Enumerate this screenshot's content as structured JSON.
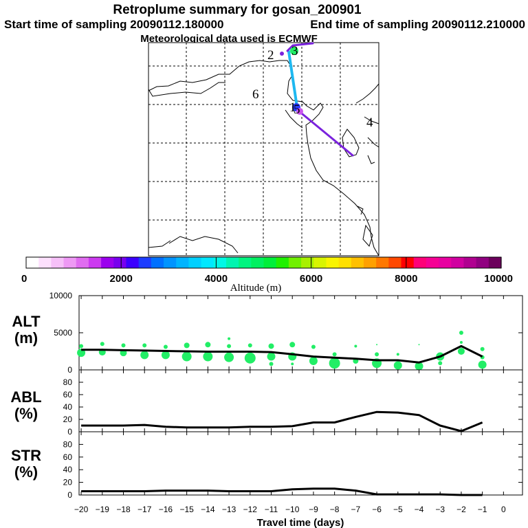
{
  "header": {
    "title": "Retroplume summary for gosan_200901",
    "start": "Start time of sampling 20090112.180000",
    "end": "End time of sampling 20090112.210000",
    "met": "Meteorological data used is ECMWF"
  },
  "map": {
    "cluster_labels": [
      {
        "text": "2",
        "color": "#000000"
      },
      {
        "text": "6",
        "color": "#000000"
      },
      {
        "text": "1",
        "color": "#000000"
      },
      {
        "text": "4",
        "color": "#000000"
      },
      {
        "text": "3",
        "color": "#000000"
      },
      {
        "text": "5",
        "color": "#000000"
      }
    ]
  },
  "colorbar": {
    "label": "Altitude (m)",
    "ticks": [
      "0",
      "2000",
      "4000",
      "6000",
      "8000",
      "10000"
    ],
    "range": [
      0,
      10000
    ],
    "colors": [
      "#ffffff",
      "#fde0fd",
      "#f6c0f8",
      "#ee99f4",
      "#e06cf0",
      "#cc3af0",
      "#9b00ee",
      "#7800ee",
      "#3b00ff",
      "#1d3cff",
      "#0070ff",
      "#0094ff",
      "#00b4ff",
      "#00d0ff",
      "#00e8ff",
      "#00f8e6",
      "#00f5b0",
      "#00f580",
      "#00f060",
      "#00ef3a",
      "#20f000",
      "#70f000",
      "#a8f000",
      "#d8f400",
      "#f8f400",
      "#ffe000",
      "#ffc000",
      "#ffa000",
      "#ff7800",
      "#ff4800",
      "#ff0000",
      "#ff0078",
      "#f60094",
      "#e800a0",
      "#d000a0",
      "#b00090",
      "#900080",
      "#6c005c"
    ]
  },
  "chart_data": [
    {
      "type": "line",
      "name": "ALT",
      "label": "ALT",
      "unit": "(m)",
      "ylim": [
        0,
        10000
      ],
      "yticks": [
        "0",
        "5000",
        "10000"
      ],
      "x": [
        -20,
        -19,
        -18,
        -17,
        -16,
        -15,
        -14,
        -13,
        -12,
        -11,
        -10,
        -9,
        -8,
        -7,
        -6,
        -5,
        -4,
        -3,
        -2,
        -1
      ],
      "values": [
        2700,
        2700,
        2650,
        2600,
        2550,
        2500,
        2450,
        2450,
        2450,
        2400,
        2100,
        1800,
        1650,
        1500,
        1300,
        1300,
        1000,
        1800,
        3200,
        1800
      ],
      "scatter": [
        {
          "x": -20,
          "y": 2300,
          "s": 6
        },
        {
          "x": -20,
          "y": 3200,
          "s": 3
        },
        {
          "x": -19,
          "y": 2400,
          "s": 5
        },
        {
          "x": -19,
          "y": 3500,
          "s": 3
        },
        {
          "x": -18,
          "y": 2300,
          "s": 5
        },
        {
          "x": -18,
          "y": 3300,
          "s": 3
        },
        {
          "x": -17,
          "y": 2000,
          "s": 6
        },
        {
          "x": -17,
          "y": 3300,
          "s": 3
        },
        {
          "x": -16,
          "y": 2000,
          "s": 6
        },
        {
          "x": -16,
          "y": 3100,
          "s": 3
        },
        {
          "x": -15,
          "y": 1800,
          "s": 7
        },
        {
          "x": -15,
          "y": 3300,
          "s": 4
        },
        {
          "x": -14,
          "y": 1800,
          "s": 7
        },
        {
          "x": -14,
          "y": 3400,
          "s": 4
        },
        {
          "x": -13,
          "y": 1700,
          "s": 7
        },
        {
          "x": -13,
          "y": 3200,
          "s": 3
        },
        {
          "x": -13,
          "y": 4200,
          "s": 2
        },
        {
          "x": -12,
          "y": 1600,
          "s": 8
        },
        {
          "x": -12,
          "y": 3300,
          "s": 3
        },
        {
          "x": -11,
          "y": 1800,
          "s": 6
        },
        {
          "x": -11,
          "y": 3200,
          "s": 4
        },
        {
          "x": -11,
          "y": 800,
          "s": 3
        },
        {
          "x": -10,
          "y": 1800,
          "s": 6
        },
        {
          "x": -10,
          "y": 3400,
          "s": 4
        },
        {
          "x": -10,
          "y": 800,
          "s": 2
        },
        {
          "x": -9,
          "y": 1200,
          "s": 6
        },
        {
          "x": -9,
          "y": 3100,
          "s": 3
        },
        {
          "x": -8,
          "y": 900,
          "s": 8
        },
        {
          "x": -8,
          "y": 2100,
          "s": 3
        },
        {
          "x": -7,
          "y": 1200,
          "s": 4
        },
        {
          "x": -7,
          "y": 3200,
          "s": 2
        },
        {
          "x": -6,
          "y": 900,
          "s": 7
        },
        {
          "x": -6,
          "y": 2100,
          "s": 3
        },
        {
          "x": -6,
          "y": 3400,
          "s": 1
        },
        {
          "x": -5,
          "y": 600,
          "s": 6
        },
        {
          "x": -5,
          "y": 2100,
          "s": 2
        },
        {
          "x": -4,
          "y": 500,
          "s": 6
        },
        {
          "x": -4,
          "y": 3400,
          "s": 1
        },
        {
          "x": -3,
          "y": 1800,
          "s": 6
        },
        {
          "x": -3,
          "y": 900,
          "s": 3
        },
        {
          "x": -2,
          "y": 2500,
          "s": 5
        },
        {
          "x": -2,
          "y": 5000,
          "s": 3
        },
        {
          "x": -2,
          "y": 3700,
          "s": 2
        },
        {
          "x": -1,
          "y": 700,
          "s": 6
        },
        {
          "x": -1,
          "y": 2800,
          "s": 3
        },
        {
          "x": -1,
          "y": 1700,
          "s": 3
        }
      ]
    },
    {
      "type": "line",
      "name": "ABL",
      "label": "ABL",
      "unit": "(%)",
      "ylim": [
        0,
        100
      ],
      "yticks": [
        "0",
        "20",
        "40",
        "60",
        "80"
      ],
      "x": [
        -20,
        -19,
        -18,
        -17,
        -16,
        -15,
        -14,
        -13,
        -12,
        -11,
        -10,
        -9,
        -8,
        -7,
        -6,
        -5,
        -4,
        -3,
        -2,
        -1
      ],
      "values": [
        10,
        10,
        10,
        11,
        8,
        7,
        7,
        7,
        8,
        8,
        9,
        15,
        15,
        24,
        32,
        31,
        27,
        10,
        1,
        15
      ]
    },
    {
      "type": "line",
      "name": "STR",
      "label": "STR",
      "unit": "(%)",
      "ylim": [
        0,
        100
      ],
      "yticks": [
        "0",
        "20",
        "40",
        "60",
        "80"
      ],
      "x": [
        -20,
        -19,
        -18,
        -17,
        -16,
        -15,
        -14,
        -13,
        -12,
        -11,
        -10,
        -9,
        -8,
        -7,
        -6,
        -5,
        -4,
        -3,
        -2,
        -1
      ],
      "values": [
        6,
        6,
        6,
        6,
        7,
        7,
        7,
        6,
        6,
        6,
        9,
        10,
        10,
        7,
        1,
        1,
        1,
        1,
        0,
        0
      ]
    }
  ],
  "xaxis": {
    "label": "Travel time (days)",
    "ticks": [
      "−20",
      "−19",
      "−18",
      "−17",
      "−16",
      "−15",
      "−14",
      "−13",
      "−12",
      "−11",
      "−10",
      "−9",
      "−8",
      "−7",
      "−6",
      "−5",
      "−4",
      "−3",
      "−2",
      "−1",
      "0"
    ],
    "range": [
      -20.1,
      0.9
    ]
  },
  "style": {
    "alt_dot_color": "#22ee66",
    "line_color": "#000000",
    "traj_cyan": "#1eb8f0",
    "traj_purple": "#7a22dd"
  }
}
